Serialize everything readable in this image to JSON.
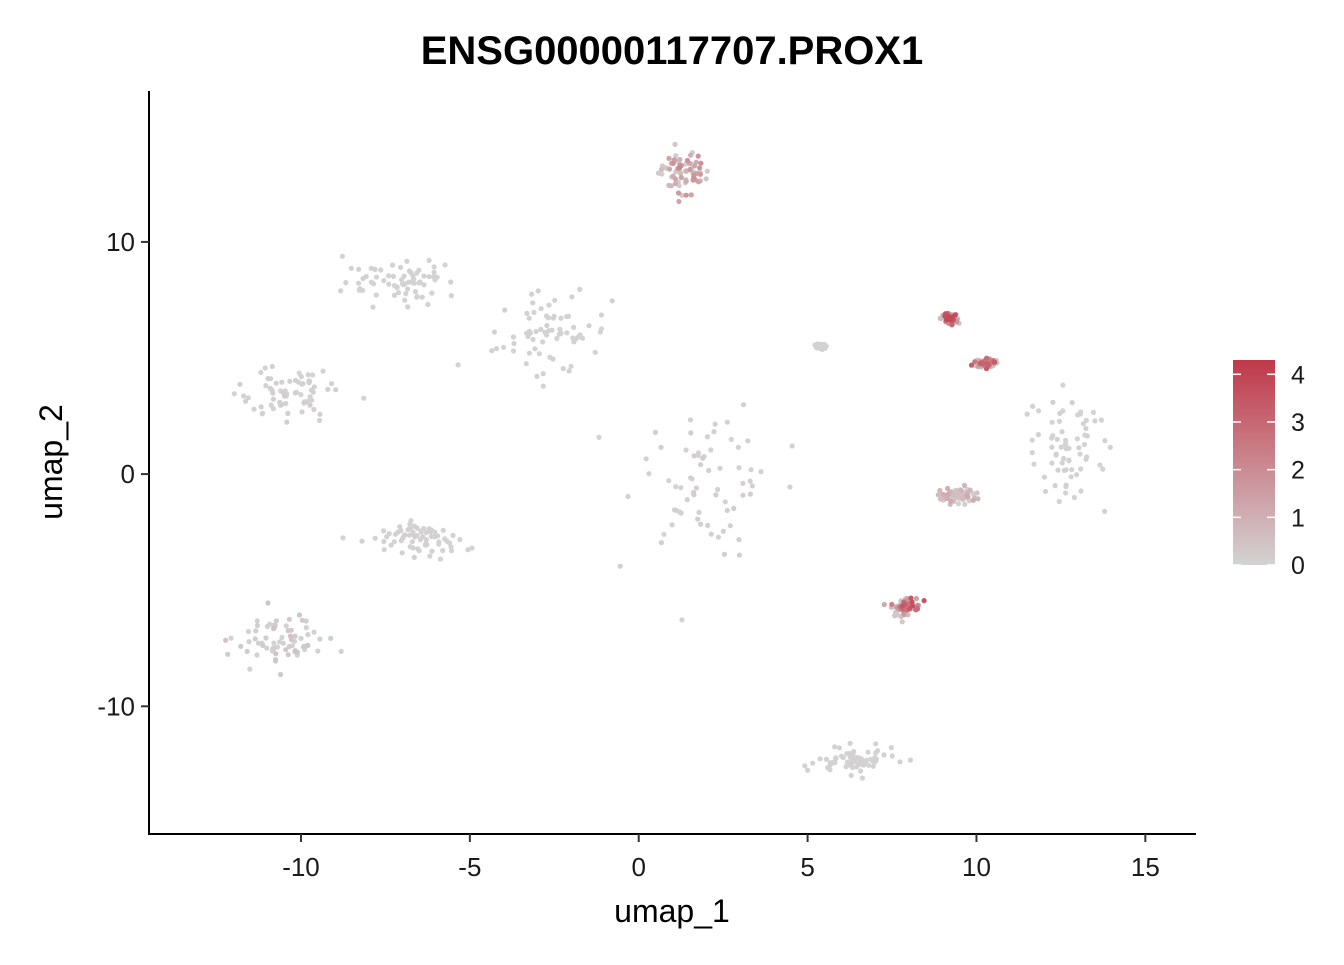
{
  "chart_data": {
    "type": "scatter",
    "title": "ENSG00000117707.PROX1",
    "xlabel": "umap_1",
    "ylabel": "umap_2",
    "xlim": [
      -14.5,
      16.5
    ],
    "ylim": [
      -15.5,
      16.5
    ],
    "x_ticks": [
      -10,
      -5,
      0,
      5,
      10,
      15
    ],
    "x_tick_labels": [
      "-10",
      "-5",
      "0",
      "5",
      "10",
      "15"
    ],
    "y_ticks": [
      -10,
      0,
      10
    ],
    "y_tick_labels": [
      "-10",
      "0",
      "10"
    ],
    "grid": false,
    "legend": {
      "position": "right",
      "type": "colorbar",
      "min": 0,
      "max": 4.3,
      "ticks": [
        0,
        1,
        2,
        3,
        4
      ],
      "tick_labels": [
        "0",
        "1",
        "2",
        "3",
        "4"
      ],
      "low_color": "#d3d3d3",
      "high_color": "#c0394a"
    },
    "clusters": [
      {
        "center": [
          1.3,
          13.0
        ],
        "spread": [
          0.6,
          0.8
        ],
        "expression": 1.6
      },
      {
        "center": [
          -7.0,
          8.3
        ],
        "spread": [
          1.4,
          0.8
        ],
        "expression": 0.05
      },
      {
        "center": [
          -2.5,
          6.0
        ],
        "spread": [
          1.4,
          1.4
        ],
        "expression": 0.05
      },
      {
        "center": [
          -10.5,
          3.5
        ],
        "spread": [
          1.2,
          1.0
        ],
        "expression": 0.1
      },
      {
        "center": [
          1.9,
          0.0
        ],
        "spread": [
          1.8,
          2.6
        ],
        "expression": 0.12
      },
      {
        "center": [
          9.2,
          6.7
        ],
        "spread": [
          0.2,
          0.2
        ],
        "expression": 3.0
      },
      {
        "center": [
          10.3,
          4.8
        ],
        "spread": [
          0.3,
          0.15
        ],
        "expression": 2.6
      },
      {
        "center": [
          12.7,
          1.0
        ],
        "spread": [
          0.9,
          2.0
        ],
        "expression": 0.06
      },
      {
        "center": [
          9.4,
          -0.9
        ],
        "spread": [
          0.5,
          0.3
        ],
        "expression": 0.9
      },
      {
        "center": [
          7.9,
          -5.7
        ],
        "spread": [
          0.35,
          0.35
        ],
        "expression": 2.8
      },
      {
        "center": [
          -6.5,
          -2.8
        ],
        "spread": [
          1.0,
          0.6
        ],
        "expression": 0.05
      },
      {
        "center": [
          -10.6,
          -7.2
        ],
        "spread": [
          1.1,
          1.0
        ],
        "expression": 0.35
      },
      {
        "center": [
          6.5,
          -12.4
        ],
        "spread": [
          1.0,
          0.45
        ],
        "expression": 0.05
      },
      {
        "center": [
          5.4,
          5.5
        ],
        "spread": [
          0.1,
          0.08
        ],
        "expression": 0.0
      }
    ]
  }
}
